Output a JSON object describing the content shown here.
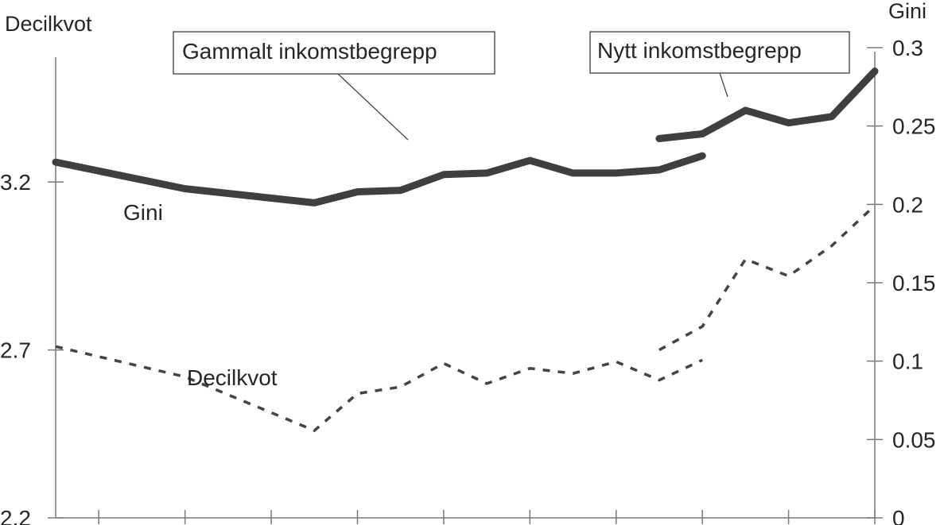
{
  "chart_data": {
    "type": "line",
    "left_axis": {
      "title": "Decilkvot",
      "ylim": [
        2.2,
        3.6
      ],
      "ticks": [
        "2.2",
        "2.7",
        "3.2"
      ],
      "tick_values": [
        2.2,
        2.7,
        3.2
      ]
    },
    "right_axis": {
      "title": "Gini",
      "ylim": [
        0,
        0.3
      ],
      "ticks": [
        "0",
        "0.05",
        "0.1",
        "0.15",
        "0.2",
        "0.25",
        "0.3"
      ],
      "tick_values": [
        0,
        0.05,
        0.1,
        0.15,
        0.2,
        0.25,
        0.3
      ]
    },
    "x": [
      0,
      1,
      2,
      3,
      4,
      5,
      6,
      7,
      8,
      9,
      10,
      11,
      12,
      13,
      14,
      15,
      16,
      17,
      18,
      19
    ],
    "x_tick_positions": [
      1,
      3,
      5,
      7,
      9,
      11,
      13,
      15,
      17,
      19
    ],
    "grid": false,
    "series": [
      {
        "name": "Gini",
        "axis": "right",
        "style": "solid",
        "segments": [
          {
            "x": [
              0,
              3,
              6,
              7,
              8,
              9,
              10,
              11,
              12,
              13,
              14,
              15
            ],
            "values": [
              0.227,
              0.21,
              0.201,
              0.208,
              0.209,
              0.219,
              0.22,
              0.228,
              0.22,
              0.22,
              0.222,
              0.231
            ]
          },
          {
            "x": [
              14,
              15,
              16,
              17,
              18,
              19
            ],
            "values": [
              0.242,
              0.245,
              0.26,
              0.252,
              0.256,
              0.285
            ]
          }
        ]
      },
      {
        "name": "Decilkvot",
        "axis": "left",
        "style": "dashed",
        "segments": [
          {
            "x": [
              0,
              3,
              6,
              7,
              8,
              9,
              10,
              11,
              12,
              13,
              14,
              15
            ],
            "values": [
              2.71,
              2.62,
              2.46,
              2.57,
              2.59,
              2.66,
              2.6,
              2.645,
              2.63,
              2.665,
              2.61,
              2.67
            ]
          },
          {
            "x": [
              14,
              15,
              16,
              17,
              18,
              19
            ],
            "values": [
              2.7,
              2.77,
              2.97,
              2.92,
              3.01,
              3.13
            ]
          }
        ]
      }
    ],
    "annotations": [
      "Gammalt inkomstbegrepp",
      "Nytt inkomstbegrepp"
    ]
  }
}
